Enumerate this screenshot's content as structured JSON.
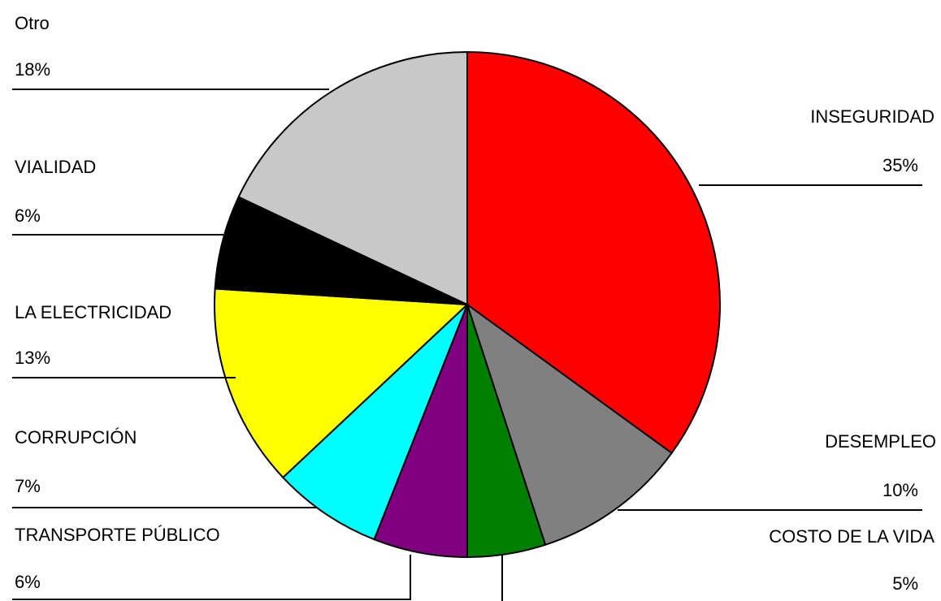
{
  "chart_data": {
    "type": "pie",
    "categories": [
      "INSEGURIDAD",
      "DESEMPLEO",
      "COSTO DE LA VIDA",
      "TRANSPORTE PÚBLICO",
      "CORRUPCIÓN",
      "LA ELECTRICIDAD",
      "VIALIDAD",
      "Otro"
    ],
    "values": [
      35,
      10,
      5,
      6,
      7,
      13,
      6,
      18
    ],
    "value_labels": [
      "35%",
      "10%",
      "5%",
      "6%",
      "7%",
      "13%",
      "6%",
      "18%"
    ],
    "colors": [
      "#ff0000",
      "#808080",
      "#008000",
      "#800080",
      "#00ffff",
      "#ffff00",
      "#000000",
      "#c8c8c8"
    ]
  }
}
